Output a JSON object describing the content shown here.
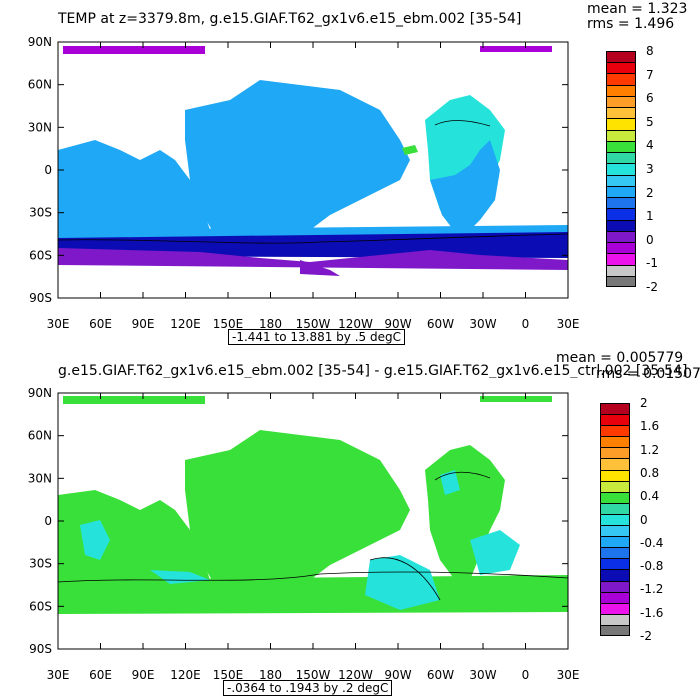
{
  "panels": [
    {
      "title": "TEMP at z=3379.8m, g.e15.GIAF.T62_gx1v6.e15_ebm.002 [35-54]",
      "mean_label": "mean = 1.323",
      "rms_label": "rms = 1.496",
      "range_label": "-1.441 to 13.881 by .5 degC",
      "colorbar": {
        "labels": [
          "8",
          "7",
          "6",
          "5",
          "4",
          "3",
          "2",
          "1",
          "0",
          "-1",
          "-2"
        ],
        "colors": [
          "#b4001e",
          "#e8000c",
          "#ff3a00",
          "#ff7f00",
          "#ff9d29",
          "#ffc03a",
          "#ffe300",
          "#c7ea3c",
          "#39e039",
          "#2fd8a5",
          "#25e3db",
          "#34c8f2",
          "#1ea8f5",
          "#1e74ec",
          "#0a2fe6",
          "#0c0cb4",
          "#7e18c8",
          "#aa00d8",
          "#ec12ec",
          "#c8c8c8",
          "#787878"
        ]
      }
    },
    {
      "title": "g.e15.GIAF.T62_gx1v6.e15_ebm.002 [35-54] - g.e15.GIAF.T62_gx1v6.e15_ctrl.002 [35-54]",
      "mean_label": "mean = 0.005779",
      "rms_label": "rms = 0.01507",
      "range_label": "-.0364 to .1943 by .2 degC",
      "colorbar": {
        "labels": [
          "2",
          "1.6",
          "1.2",
          "0.8",
          "0.4",
          "0",
          "-0.4",
          "-0.8",
          "-1.2",
          "-1.6",
          "-2"
        ],
        "colors": [
          "#b4001e",
          "#e8000c",
          "#ff3a00",
          "#ff7f00",
          "#ff9d29",
          "#ffc03a",
          "#ffe300",
          "#c7ea3c",
          "#39e039",
          "#2fd8a5",
          "#25e3db",
          "#34c8f2",
          "#1ea8f5",
          "#1e74ec",
          "#0a2fe6",
          "#0c0cb4",
          "#7e18c8",
          "#aa00d8",
          "#ec12ec",
          "#c8c8c8",
          "#787878"
        ]
      }
    }
  ],
  "axis": {
    "lat_labels": [
      "90N",
      "60N",
      "30N",
      "0",
      "30S",
      "60S",
      "90S"
    ],
    "lon_labels": [
      "30E",
      "60E",
      "90E",
      "120E",
      "150E",
      "180",
      "150W",
      "120W",
      "90W",
      "60W",
      "30W",
      "0",
      "30E"
    ]
  },
  "colors": {
    "panel1_ocean": "#1ea8f5",
    "panel1_south_deep": "#0c0cb4",
    "panel1_south_purple": "#7e18c8",
    "panel1_arctic": "#aa00d8",
    "panel1_atlantic": "#25e3db",
    "panel2_ocean": "#39e039",
    "panel2_light": "#25e3db",
    "land": "#ffffff"
  }
}
